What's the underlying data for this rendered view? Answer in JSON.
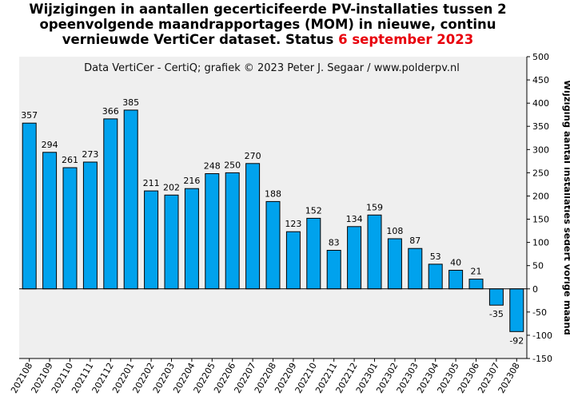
{
  "chart_data": {
    "type": "bar",
    "title_parts": [
      "Wijzigingen in aantallen gecerticifeerde PV-installaties tussen 2 opeenvolgende maandrapportages (MOM) in nieuwe, continu vernieuwde VertiCer dataset. Status ",
      "6 september 2023"
    ],
    "credit": "Data VertiCer - CertiQ; grafiek © 2023 Peter J. Segaar / www.polderpv.nl",
    "ylabel": "Wijziging aantal installaties sedert vorige maand",
    "ylim": [
      -150,
      500
    ],
    "yticks": [
      -150,
      -100,
      -50,
      0,
      50,
      100,
      150,
      200,
      250,
      300,
      350,
      400,
      450,
      500
    ],
    "grid": false,
    "categories": [
      "202108",
      "202109",
      "202110",
      "202111",
      "202112",
      "202201",
      "202202",
      "202203",
      "202204",
      "202205",
      "202206",
      "202207",
      "202208",
      "202209",
      "202210",
      "202211",
      "202212",
      "202301",
      "202302",
      "202303",
      "202304",
      "202305",
      "202306",
      "202307",
      "202308"
    ],
    "values": [
      357,
      294,
      261,
      273,
      366,
      385,
      211,
      202,
      216,
      248,
      250,
      270,
      188,
      123,
      152,
      83,
      134,
      159,
      108,
      87,
      53,
      40,
      21,
      -35,
      -92
    ],
    "colors": {
      "bar": "#00a2ed",
      "plot_bg": "#efefef",
      "highlight": "#e8000b"
    }
  }
}
